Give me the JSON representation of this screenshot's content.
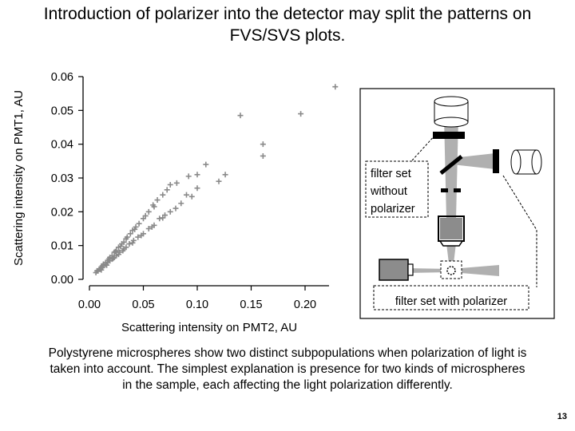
{
  "slide": {
    "title_line1": "Introduction of polarizer into the detector may split the patterns on",
    "title_line2": "FVS/SVS plots.",
    "caption_line1": "Polystyrene microspheres show two distinct subpopulations when polarization of light is",
    "caption_line2": "taken into account. The simplest explanation is presence for two kinds of microspheres",
    "caption_line3": "in the sample, each affecting the light polarization differently.",
    "page_number": "13"
  },
  "chart_data": {
    "type": "scatter",
    "xlabel": "Scattering intensity on PMT2, AU",
    "ylabel": "Scattering intensity on PMT1, AU",
    "xlim": [
      0,
      0.23
    ],
    "ylim": [
      0,
      0.06
    ],
    "x_ticks": [
      {
        "value": 0.0,
        "label": "0.00"
      },
      {
        "value": 0.05,
        "label": "0.05"
      },
      {
        "value": 0.1,
        "label": "0.10"
      },
      {
        "value": 0.15,
        "label": "0.15"
      },
      {
        "value": 0.2,
        "label": "0.20"
      }
    ],
    "y_ticks": [
      {
        "value": 0.0,
        "label": "0.00"
      },
      {
        "value": 0.01,
        "label": "0.01"
      },
      {
        "value": 0.02,
        "label": "0.02"
      },
      {
        "value": 0.03,
        "label": "0.03"
      },
      {
        "value": 0.04,
        "label": "0.04"
      },
      {
        "value": 0.05,
        "label": "0.05"
      },
      {
        "value": 0.06,
        "label": "0.06"
      }
    ],
    "marker": "+",
    "marker_color": "#8a8a8a",
    "grid": false,
    "series": [
      {
        "values": [
          [
            0.006,
            0.002
          ],
          [
            0.008,
            0.0025
          ],
          [
            0.01,
            0.003
          ],
          [
            0.012,
            0.0035
          ],
          [
            0.013,
            0.004
          ],
          [
            0.015,
            0.0045
          ],
          [
            0.017,
            0.005
          ],
          [
            0.019,
            0.0055
          ],
          [
            0.021,
            0.006
          ],
          [
            0.023,
            0.0065
          ],
          [
            0.025,
            0.007
          ],
          [
            0.028,
            0.008
          ],
          [
            0.031,
            0.0085
          ],
          [
            0.034,
            0.0095
          ],
          [
            0.037,
            0.0105
          ],
          [
            0.041,
            0.0115
          ],
          [
            0.045,
            0.0125
          ],
          [
            0.05,
            0.0135
          ],
          [
            0.055,
            0.015
          ],
          [
            0.06,
            0.016
          ],
          [
            0.065,
            0.018
          ],
          [
            0.07,
            0.019
          ],
          [
            0.075,
            0.02
          ],
          [
            0.08,
            0.021
          ],
          [
            0.09,
            0.025
          ],
          [
            0.1,
            0.027
          ],
          [
            0.126,
            0.031
          ],
          [
            0.161,
            0.04
          ],
          [
            0.161,
            0.0365
          ],
          [
            0.196,
            0.049
          ],
          [
            0.228,
            0.057
          ],
          [
            0.011,
            0.0028
          ],
          [
            0.016,
            0.0042
          ],
          [
            0.022,
            0.0062
          ],
          [
            0.027,
            0.0074
          ],
          [
            0.032,
            0.009
          ],
          [
            0.04,
            0.0108
          ],
          [
            0.048,
            0.013
          ],
          [
            0.058,
            0.0155
          ],
          [
            0.068,
            0.0182
          ],
          [
            0.085,
            0.0225
          ],
          [
            0.095,
            0.0245
          ],
          [
            0.12,
            0.029
          ]
        ]
      },
      {
        "values": [
          [
            0.007,
            0.0025
          ],
          [
            0.009,
            0.003
          ],
          [
            0.011,
            0.0035
          ],
          [
            0.013,
            0.0045
          ],
          [
            0.015,
            0.005
          ],
          [
            0.017,
            0.0055
          ],
          [
            0.019,
            0.0065
          ],
          [
            0.021,
            0.007
          ],
          [
            0.023,
            0.008
          ],
          [
            0.025,
            0.0085
          ],
          [
            0.027,
            0.0095
          ],
          [
            0.03,
            0.0105
          ],
          [
            0.032,
            0.011
          ],
          [
            0.035,
            0.0125
          ],
          [
            0.038,
            0.0135
          ],
          [
            0.04,
            0.0145
          ],
          [
            0.043,
            0.0155
          ],
          [
            0.046,
            0.0165
          ],
          [
            0.05,
            0.018
          ],
          [
            0.055,
            0.02
          ],
          [
            0.059,
            0.022
          ],
          [
            0.063,
            0.0235
          ],
          [
            0.068,
            0.025
          ],
          [
            0.075,
            0.028
          ],
          [
            0.081,
            0.0285
          ],
          [
            0.092,
            0.0305
          ],
          [
            0.108,
            0.034
          ],
          [
            0.14,
            0.0485
          ],
          [
            0.012,
            0.004
          ],
          [
            0.018,
            0.006
          ],
          [
            0.024,
            0.0082
          ],
          [
            0.029,
            0.0098
          ],
          [
            0.034,
            0.012
          ],
          [
            0.042,
            0.0148
          ],
          [
            0.052,
            0.0188
          ],
          [
            0.06,
            0.0215
          ],
          [
            0.072,
            0.0265
          ],
          [
            0.1,
            0.031
          ]
        ]
      }
    ]
  },
  "schematic": {
    "label_no_polarizer_1": "filter set",
    "label_no_polarizer_2": "without",
    "label_no_polarizer_3": "polarizer",
    "label_with_polarizer": "filter set with polarizer",
    "fill_gray": "#8c8c8c",
    "beam_gray": "#b0b0b0"
  }
}
